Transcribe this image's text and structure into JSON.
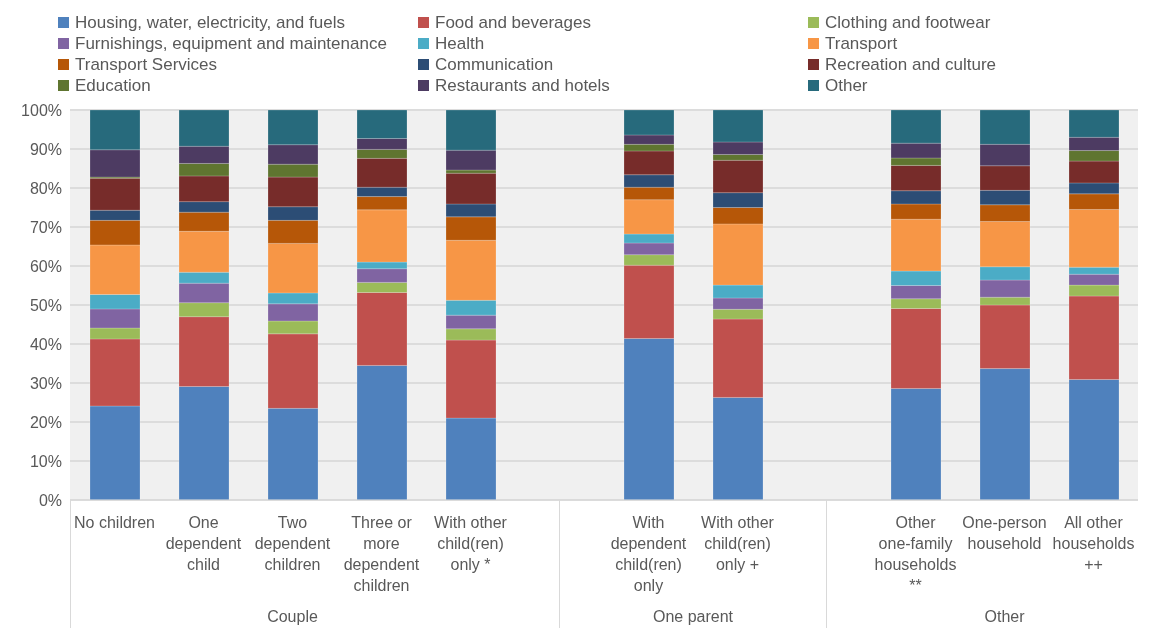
{
  "chart_data": {
    "type": "bar",
    "stacked": true,
    "categories": [
      "No children",
      "One dependent child",
      "Two dependent children",
      "Three or more dependent children",
      "With other child(ren) only *",
      null,
      "With dependent child(ren) only",
      "With other child(ren) only +",
      null,
      "Other one-family households **",
      "One-person household",
      "All other households ++"
    ],
    "series": [
      {
        "name": "Housing, water, electricity, and fuels",
        "color": "#4f81bd",
        "values": [
          24.1,
          29.1,
          23.5,
          34.5,
          21.0,
          null,
          41.4,
          26.3,
          null,
          28.6,
          33.7,
          30.9
        ]
      },
      {
        "name": "Food and beverages",
        "color": "#c0504d",
        "values": [
          17.2,
          17.9,
          19.1,
          18.7,
          20.0,
          null,
          18.8,
          20.1,
          null,
          20.5,
          16.3,
          21.4
        ]
      },
      {
        "name": "Clothing and footwear",
        "color": "#9bbb59",
        "values": [
          2.8,
          3.6,
          3.3,
          2.6,
          2.9,
          null,
          2.7,
          2.5,
          null,
          2.5,
          2.0,
          2.8
        ]
      },
      {
        "name": "Furnishings, equipment and maintenance",
        "color": "#8064a2",
        "values": [
          4.9,
          5.0,
          4.4,
          3.5,
          3.5,
          null,
          3.0,
          2.9,
          null,
          3.4,
          4.4,
          2.8
        ]
      },
      {
        "name": "Health",
        "color": "#4bacc6",
        "values": [
          3.7,
          2.8,
          2.8,
          1.7,
          3.8,
          null,
          2.3,
          3.3,
          null,
          3.7,
          3.4,
          1.8
        ]
      },
      {
        "name": "Transport",
        "color": "#f79646",
        "values": [
          12.7,
          10.5,
          12.7,
          13.4,
          15.4,
          null,
          8.8,
          15.7,
          null,
          13.3,
          11.6,
          14.8
        ]
      },
      {
        "name": "Transport Services",
        "color": "#b65708",
        "values": [
          6.3,
          4.9,
          5.9,
          3.4,
          6.0,
          null,
          3.2,
          4.2,
          null,
          3.9,
          4.3,
          4.0
        ]
      },
      {
        "name": "Communication",
        "color": "#2c4d75",
        "values": [
          2.6,
          2.7,
          3.5,
          2.4,
          3.3,
          null,
          3.2,
          3.8,
          null,
          3.4,
          3.7,
          2.8
        ]
      },
      {
        "name": "Recreation and culture",
        "color": "#772c2a",
        "values": [
          8.2,
          6.6,
          7.6,
          7.4,
          7.9,
          null,
          6.1,
          8.3,
          null,
          6.5,
          6.3,
          5.6
        ]
      },
      {
        "name": "Education",
        "color": "#5f7530",
        "values": [
          0.3,
          3.2,
          3.3,
          2.3,
          0.8,
          null,
          1.7,
          1.5,
          null,
          1.9,
          0,
          2.7
        ]
      },
      {
        "name": "Restaurants and hotels",
        "color": "#4d3b62",
        "values": [
          7.0,
          4.4,
          5.0,
          2.8,
          5.1,
          null,
          2.4,
          3.2,
          null,
          3.8,
          5.5,
          3.4
        ]
      },
      {
        "name": "Other",
        "color": "#276a7c",
        "values": [
          10.2,
          9.3,
          8.9,
          7.3,
          10.3,
          null,
          6.4,
          8.2,
          null,
          8.5,
          8.8,
          7.0
        ]
      }
    ],
    "ylim": [
      0,
      100
    ],
    "yticks": [
      {
        "value": 0,
        "label": "0%"
      },
      {
        "value": 10,
        "label": "10%"
      },
      {
        "value": 20,
        "label": "20%"
      },
      {
        "value": 30,
        "label": "30%"
      },
      {
        "value": 40,
        "label": "40%"
      },
      {
        "value": 50,
        "label": "50%"
      },
      {
        "value": 60,
        "label": "60%"
      },
      {
        "value": 70,
        "label": "70%"
      },
      {
        "value": 80,
        "label": "80%"
      },
      {
        "value": 90,
        "label": "90%"
      },
      {
        "value": 100,
        "label": "100%"
      }
    ],
    "grid": "y",
    "legend": "top",
    "annotations": [
      "Couple",
      "One parent",
      "Other"
    ]
  }
}
